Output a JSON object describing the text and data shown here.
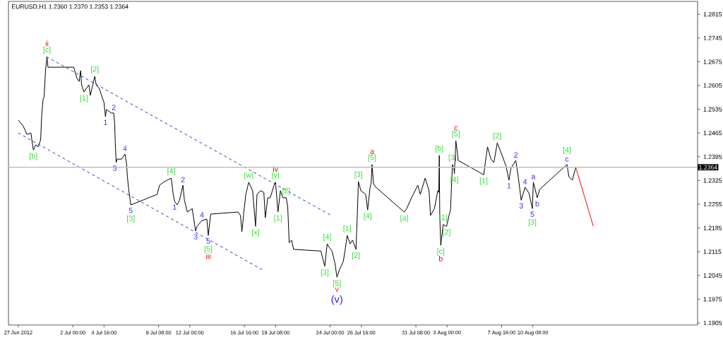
{
  "chart_data": {
    "type": "line",
    "title": "EURUSD,H1  1.2360 1.2370 1.2353 1.2364",
    "xlim": [
      "2012-06-26T12:00",
      "2012-08-24T10:00"
    ],
    "ylim": [
      1.1899,
      1.2853
    ],
    "xticks": [
      {
        "value": "2012-06-27T08:00",
        "label": "27 Jun 2012"
      },
      {
        "value": "2012-07-02T00:00",
        "label": "2 Jul 00:00"
      },
      {
        "value": "2012-07-04T16:00",
        "label": "4 Jul 16:00"
      },
      {
        "value": "2012-07-09T08:00",
        "label": "9 Jul 08:00"
      },
      {
        "value": "2012-07-12T00:00",
        "label": "12 Jul 00:00"
      },
      {
        "value": "2012-07-16T16:00",
        "label": "16 Jul 16:00"
      },
      {
        "value": "2012-07-19T08:00",
        "label": "19 Jul 08:00"
      },
      {
        "value": "2012-07-24T00:00",
        "label": "24 Jul 00:00"
      },
      {
        "value": "2012-07-26T16:00",
        "label": "26 Jul 16:00"
      },
      {
        "value": "2012-07-31T08:00",
        "label": "31 Jul 08:00"
      },
      {
        "value": "2012-08-03T00:00",
        "label": "3 Aug 00:00"
      },
      {
        "value": "2012-08-07T16:00",
        "label": "7 Aug 16:00"
      },
      {
        "value": "2012-08-10T08:00",
        "label": "10 Aug 08:00"
      }
    ],
    "yticks": [
      1.1905,
      1.1975,
      1.2045,
      1.2115,
      1.2185,
      1.2255,
      1.2325,
      1.2395,
      1.2465,
      1.2535,
      1.2605,
      1.2675,
      1.2745,
      1.2815
    ],
    "ref_lines": [
      {
        "axis": "y",
        "value": 1.2364,
        "label": "1.2364",
        "color": "#c0c0c0"
      }
    ],
    "series": [
      {
        "color": "#000000",
        "x": [
          "2012-06-27T08:00",
          "2012-06-27T18:00",
          "2012-06-28T02:00",
          "2012-06-28T10:00",
          "2012-06-28T15:00",
          "2012-06-28T20:00",
          "2012-06-29T01:00",
          "2012-06-29T06:00",
          "2012-06-29T08:00",
          "2012-06-29T11:00",
          "2012-06-29T13:00",
          "2012-06-29T16:00",
          "2012-06-29T19:00",
          "2012-06-29T21:00",
          "2012-07-02T02:00",
          "2012-07-02T08:00",
          "2012-07-02T13:00",
          "2012-07-02T16:00",
          "2012-07-02T18:00",
          "2012-07-02T23:00",
          "2012-07-03T04:00",
          "2012-07-03T09:00",
          "2012-07-03T12:00",
          "2012-07-03T17:00",
          "2012-07-03T21:00",
          "2012-07-04T00:00",
          "2012-07-04T06:00",
          "2012-07-04T11:00",
          "2012-07-04T16:00",
          "2012-07-04T19:00",
          "2012-07-04T21:00",
          "2012-07-05T07:00",
          "2012-07-05T12:00",
          "2012-07-05T14:00",
          "2012-07-05T15:00",
          "2012-07-05T17:00",
          "2012-07-05T19:00",
          "2012-07-06T04:00",
          "2012-07-06T11:00",
          "2012-07-06T14:00",
          "2012-07-06T16:00",
          "2012-07-06T19:00",
          "2012-07-06T23:00",
          "2012-07-09T05:00",
          "2012-07-09T10:00",
          "2012-07-09T18:00",
          "2012-07-10T02:00",
          "2012-07-10T10:00",
          "2012-07-10T14:00",
          "2012-07-10T17:00",
          "2012-07-10T22:00",
          "2012-07-11T03:00",
          "2012-07-11T10:00",
          "2012-07-11T13:00",
          "2012-07-11T19:00",
          "2012-07-12T05:00",
          "2012-07-12T12:00",
          "2012-07-12T15:00",
          "2012-07-13T01:00",
          "2012-07-13T11:00",
          "2012-07-13T14:00",
          "2012-07-13T19:00",
          "2012-07-16T03:00",
          "2012-07-16T08:00",
          "2012-07-16T11:00",
          "2012-07-16T15:00",
          "2012-07-16T19:00",
          "2012-07-17T01:00",
          "2012-07-17T09:00",
          "2012-07-17T15:00",
          "2012-07-17T18:00",
          "2012-07-18T01:00",
          "2012-07-18T08:00",
          "2012-07-18T11:00",
          "2012-07-18T16:00",
          "2012-07-18T21:00",
          "2012-07-19T05:00",
          "2012-07-19T08:00",
          "2012-07-19T13:00",
          "2012-07-19T18:00",
          "2012-07-19T23:00",
          "2012-07-20T06:00",
          "2012-07-20T09:00",
          "2012-07-20T12:00",
          "2012-07-20T17:00",
          "2012-07-20T21:00",
          "2012-07-23T05:00",
          "2012-07-23T13:00",
          "2012-07-23T18:00",
          "2012-07-23T22:00",
          "2012-07-24T04:00",
          "2012-07-24T10:00",
          "2012-07-24T14:00",
          "2012-07-24T20:00",
          "2012-07-25T03:00",
          "2012-07-25T07:00",
          "2012-07-25T11:00",
          "2012-07-25T17:00",
          "2012-07-25T22:00",
          "2012-07-26T05:00",
          "2012-07-26T08:00",
          "2012-07-26T10:00",
          "2012-07-26T15:00",
          "2012-07-27T01:00",
          "2012-07-27T05:00",
          "2012-07-27T10:00",
          "2012-07-27T12:00",
          "2012-07-27T14:00",
          "2012-07-27T17:00",
          "2012-07-27T22:00",
          "2012-07-30T08:00",
          "2012-07-30T13:00",
          "2012-07-30T23:00",
          "2012-07-31T12:00",
          "2012-07-31T17:00",
          "2012-08-01T03:00",
          "2012-08-01T11:00",
          "2012-08-01T14:00",
          "2012-08-01T22:00",
          "2012-08-02T05:00",
          "2012-08-02T07:00",
          "2012-08-02T08:00",
          "2012-08-02T09:00",
          "2012-08-02T11:00",
          "2012-08-02T16:00",
          "2012-08-02T23:00",
          "2012-08-03T04:00",
          "2012-08-03T07:00",
          "2012-08-03T11:00",
          "2012-08-03T14:00",
          "2012-08-03T15:00",
          "2012-08-03T18:00",
          "2012-08-03T23:00",
          "2012-08-06T03:00",
          "2012-08-06T11:00",
          "2012-08-06T18:00",
          "2012-08-07T00:00",
          "2012-08-07T07:00",
          "2012-08-07T18:00",
          "2012-08-08T01:00",
          "2012-08-08T07:00",
          "2012-08-08T11:00",
          "2012-08-08T21:00",
          "2012-08-09T02:00",
          "2012-08-09T08:00",
          "2012-08-09T16:00",
          "2012-08-10T00:00",
          "2012-08-10T07:00",
          "2012-08-10T09:00",
          "2012-08-10T17:00",
          "2012-08-10T22:00",
          "2012-08-13T06:00",
          "2012-08-13T10:00",
          "2012-08-13T17:00",
          "2012-08-14T00:00"
        ],
        "values": [
          1.2503,
          1.2486,
          1.2461,
          1.2465,
          1.2415,
          1.243,
          1.2424,
          1.2445,
          1.2513,
          1.2565,
          1.257,
          1.2649,
          1.269,
          1.2659,
          1.2659,
          1.2628,
          1.2617,
          1.2649,
          1.2607,
          1.2586,
          1.2597,
          1.2607,
          1.2576,
          1.2607,
          1.2632,
          1.2607,
          1.2597,
          1.2576,
          1.2555,
          1.2513,
          1.2534,
          1.2524,
          1.2524,
          1.2492,
          1.244,
          1.2378,
          1.2388,
          1.2388,
          1.2403,
          1.2378,
          1.2336,
          1.2295,
          1.2253,
          1.2284,
          1.2311,
          1.232,
          1.2326,
          1.2332,
          1.2284,
          1.2263,
          1.2253,
          1.2267,
          1.2311,
          1.2267,
          1.2232,
          1.2242,
          1.2176,
          1.219,
          1.2207,
          1.2211,
          1.2163,
          1.2226,
          1.2232,
          1.2222,
          1.2174,
          1.2232,
          1.2284,
          1.232,
          1.2295,
          1.219,
          1.2284,
          1.2295,
          1.229,
          1.2215,
          1.2274,
          1.2274,
          1.2311,
          1.232,
          1.2232,
          1.2295,
          1.2274,
          1.2274,
          1.2247,
          1.2142,
          1.2149,
          1.2122,
          1.2117,
          1.2072,
          1.2138,
          1.2128,
          1.2117,
          1.208,
          1.204,
          1.2065,
          1.2086,
          1.2122,
          1.2163,
          1.2138,
          1.2149,
          1.2122,
          1.2232,
          1.2322,
          1.2295,
          1.2284,
          1.2238,
          1.2305,
          1.2315,
          1.2372,
          1.2315,
          1.2305,
          1.2232,
          1.2242,
          1.2274,
          1.2311,
          1.2284,
          1.2332,
          1.2295,
          1.2222,
          1.2242,
          1.2295,
          1.229,
          1.2399,
          1.222,
          1.2134,
          1.2195,
          1.219,
          1.2222,
          1.2238,
          1.2372,
          1.2361,
          1.2345,
          1.2442,
          1.2384,
          1.2342,
          1.2424,
          1.2388,
          1.2378,
          1.2436,
          1.2395,
          1.2367,
          1.2326,
          1.2361,
          1.2384,
          1.2336,
          1.2267,
          1.2305,
          1.2288,
          1.2242,
          1.232,
          1.2274,
          1.2299,
          1.2372,
          1.2336,
          1.2326,
          1.2364
        ]
      },
      {
        "type": "line",
        "color": "#3333cc",
        "line_style": "dashed",
        "x": [
          "2012-06-29T18:00",
          "2012-07-24T02:00"
        ],
        "values": [
          1.269,
          1.2222
        ]
      },
      {
        "type": "line",
        "color": "#3333cc",
        "line_style": "dashed",
        "x": [
          "2012-06-27T08:00",
          "2012-07-18T06:00"
        ],
        "values": [
          1.2465,
          1.2061
        ]
      },
      {
        "type": "line",
        "color": "#ff0000",
        "x": [
          "2012-08-14T00:00",
          "2012-08-15T12:00"
        ],
        "values": [
          1.2364,
          1.219
        ]
      }
    ],
    "annotations": [
      {
        "text": "1",
        "x": "2012-07-04T19:00",
        "y": 1.2513
      },
      {
        "text": "2",
        "x": "2012-07-05T12:00",
        "y": 1.2524
      },
      {
        "text": "3",
        "x": "2012-07-05T14:00",
        "y": 1.2378
      },
      {
        "text": "4",
        "x": "2012-07-06T11:00",
        "y": 1.2403
      },
      {
        "text": "5",
        "x": "2012-07-06T23:00",
        "y": 1.2253
      },
      {
        "text": "1",
        "x": "2012-07-10T17:00",
        "y": 1.2263
      },
      {
        "text": "2",
        "x": "2012-07-11T10:00",
        "y": 1.2311
      },
      {
        "text": "3",
        "x": "2012-07-12T12:00",
        "y": 1.2176
      },
      {
        "text": "4",
        "x": "2012-07-13T01:00",
        "y": 1.2207
      },
      {
        "text": "5",
        "x": "2012-07-13T14:00",
        "y": 1.2163
      },
      {
        "text": "1",
        "x": "2012-08-08T07:00",
        "y": 1.2326
      },
      {
        "text": "2",
        "x": "2012-08-08T21:00",
        "y": 1.2384
      },
      {
        "text": "3",
        "x": "2012-08-09T08:00",
        "y": 1.2267
      },
      {
        "text": "4",
        "x": "2012-08-09T16:00",
        "y": 1.2305
      },
      {
        "text": "5",
        "x": "2012-08-10T07:00",
        "y": 1.2242
      },
      {
        "text": "a",
        "x": "2012-08-10T09:00",
        "y": 1.232
      },
      {
        "text": "b",
        "x": "2012-08-10T17:00",
        "y": 1.2274
      },
      {
        "text": "c",
        "x": "2012-08-13T06:00",
        "y": 1.2372
      },
      {
        "text": "[b]",
        "x": "2012-06-28T15:00",
        "y": 1.2415
      },
      {
        "text": "[c]",
        "x": "2012-06-29T19:00",
        "y": 1.269
      },
      {
        "text": "[1]",
        "x": "2012-07-02T23:00",
        "y": 1.2586
      },
      {
        "text": "[2]",
        "x": "2012-07-03T21:00",
        "y": 1.2632
      },
      {
        "text": "[3]",
        "x": "2012-07-06T23:00",
        "y": 1.2253
      },
      {
        "text": "[4]",
        "x": "2012-07-10T10:00",
        "y": 1.2332
      },
      {
        "text": "[5]",
        "x": "2012-07-13T14:00",
        "y": 1.2163
      },
      {
        "text": "[w]",
        "x": "2012-07-17T01:00",
        "y": 1.232
      },
      {
        "text": "[x]",
        "x": "2012-07-17T15:00",
        "y": 1.219
      },
      {
        "text": "[y]",
        "x": "2012-07-19T08:00",
        "y": 1.232
      },
      {
        "text": "[1]",
        "x": "2012-07-19T13:00",
        "y": 1.2232
      },
      {
        "text": "[2]",
        "x": "2012-07-20T06:00",
        "y": 1.2274
      },
      {
        "text": "[3]",
        "x": "2012-07-23T13:00",
        "y": 1.2072
      },
      {
        "text": "[4]",
        "x": "2012-07-23T18:00",
        "y": 1.2138
      },
      {
        "text": "[5]",
        "x": "2012-07-24T14:00",
        "y": 1.204
      },
      {
        "text": "[1]",
        "x": "2012-07-25T11:00",
        "y": 1.2163
      },
      {
        "text": "[2]",
        "x": "2012-07-26T05:00",
        "y": 1.2122
      },
      {
        "text": "[3]",
        "x": "2012-07-26T10:00",
        "y": 1.2322
      },
      {
        "text": "[4]",
        "x": "2012-07-27T05:00",
        "y": 1.2238
      },
      {
        "text": "[5]",
        "x": "2012-07-27T14:00",
        "y": 1.2372
      },
      {
        "text": "[a]",
        "x": "2012-07-30T08:00",
        "y": 1.2232
      },
      {
        "text": "[b]",
        "x": "2012-08-02T08:00",
        "y": 1.2399
      },
      {
        "text": "[c]",
        "x": "2012-08-02T11:00",
        "y": 1.2134
      },
      {
        "text": "[1]",
        "x": "2012-08-02T16:00",
        "y": 1.2195
      },
      {
        "text": "[2]",
        "x": "2012-08-02T23:00",
        "y": 1.219
      },
      {
        "text": "[3]",
        "x": "2012-08-03T11:00",
        "y": 1.2372
      },
      {
        "text": "[4]",
        "x": "2012-08-03T15:00",
        "y": 1.2345
      },
      {
        "text": "[5]",
        "x": "2012-08-03T18:00",
        "y": 1.2442
      },
      {
        "text": "[1]",
        "x": "2012-08-06T03:00",
        "y": 1.2342
      },
      {
        "text": "[2]",
        "x": "2012-08-07T07:00",
        "y": 1.2436
      },
      {
        "text": "[3]",
        "x": "2012-08-10T07:00",
        "y": 1.2242
      },
      {
        "text": "[4]",
        "x": "2012-08-13T06:00",
        "y": 1.2372
      },
      {
        "text": "ii",
        "x": "2012-06-29T19:00",
        "y": 1.269
      },
      {
        "text": "iii",
        "x": "2012-07-13T14:00",
        "y": 1.2163
      },
      {
        "text": "iv",
        "x": "2012-07-19T08:00",
        "y": 1.232
      },
      {
        "text": "v",
        "x": "2012-07-24T14:00",
        "y": 1.204
      },
      {
        "text": "a",
        "x": "2012-07-27T14:00",
        "y": 1.2372
      },
      {
        "text": "b",
        "x": "2012-08-02T11:00",
        "y": 1.2134
      },
      {
        "text": "c",
        "x": "2012-08-03T18:00",
        "y": 1.2442
      },
      {
        "text": "(v)",
        "x": "2012-07-24T14:00",
        "y": 1.204
      }
    ]
  }
}
